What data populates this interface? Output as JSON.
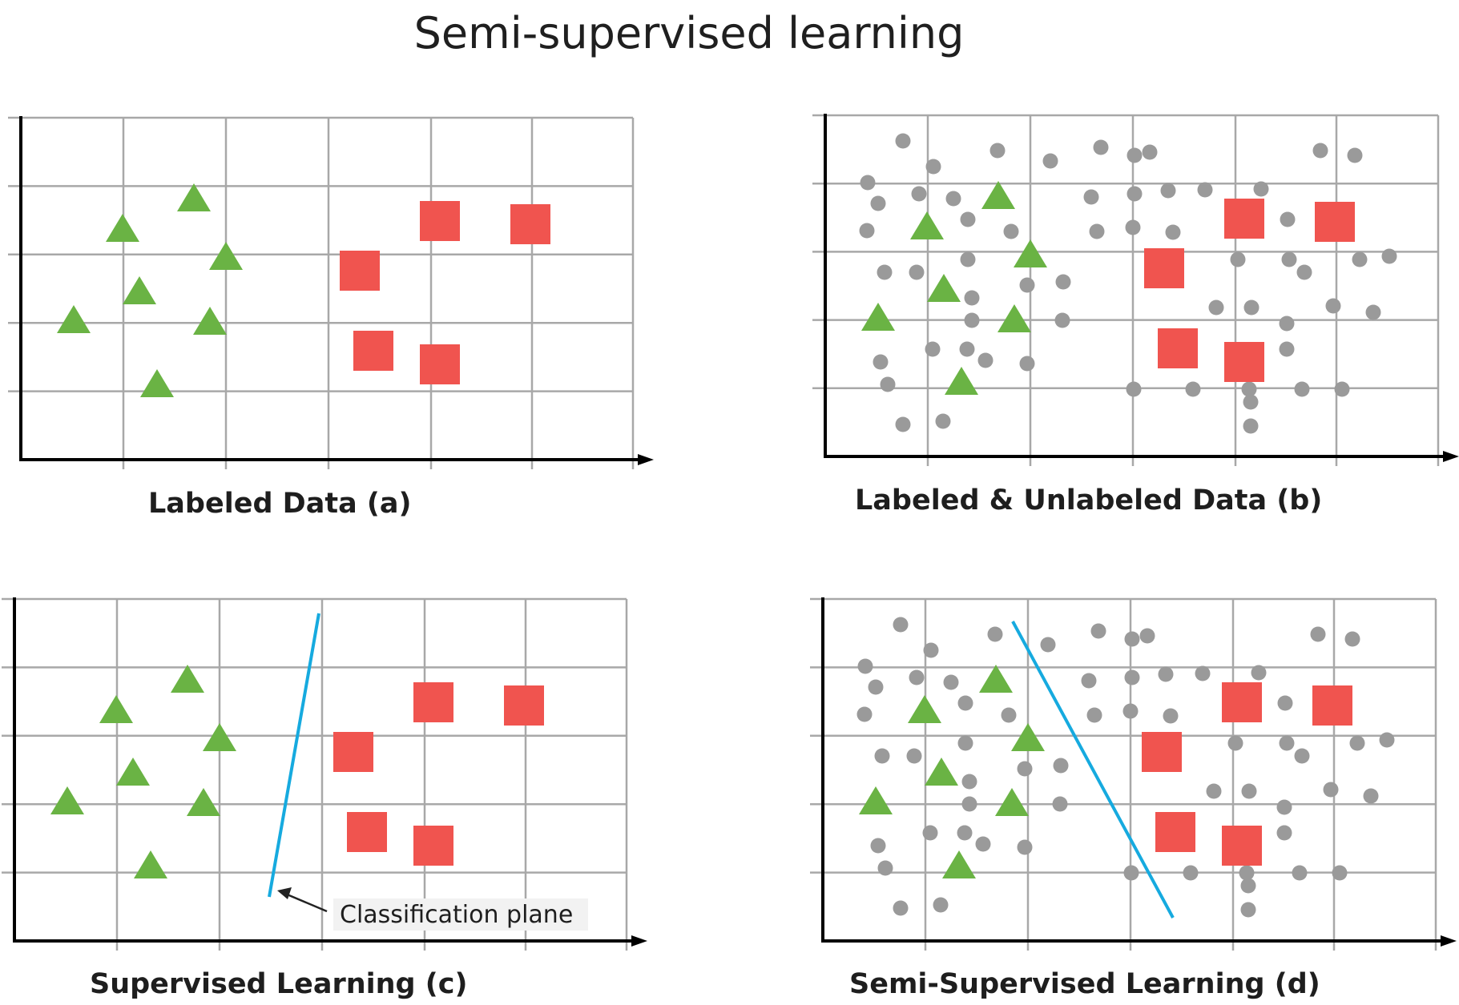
{
  "title": "Semi-supervised learning",
  "colors": {
    "labeled_class_a": "#6ab344",
    "labeled_class_b": "#f0544f",
    "unlabeled": "#9a9a9a",
    "grid": "#a8a8a8",
    "axis": "#000000",
    "classification_line": "#16aadf",
    "annotation_box": "#f2f2f2"
  },
  "icons": {
    "class_a_marker": "green-triangle-icon",
    "class_b_marker": "red-square-icon",
    "unlabeled_marker": "gray-dot-icon"
  },
  "panels": [
    {
      "id": "a",
      "caption": "Labeled Data (a)",
      "show_unlabeled": false,
      "show_line": false
    },
    {
      "id": "b",
      "caption": "Labeled & Unlabeled Data (b)",
      "show_unlabeled": true,
      "show_line": false
    },
    {
      "id": "c",
      "caption": "Supervised Learning (c)",
      "show_unlabeled": false,
      "show_line": true,
      "annotation": "Classification plane"
    },
    {
      "id": "d",
      "caption": "Semi-Supervised Learning (d)",
      "show_unlabeled": true,
      "show_line": true
    }
  ]
}
